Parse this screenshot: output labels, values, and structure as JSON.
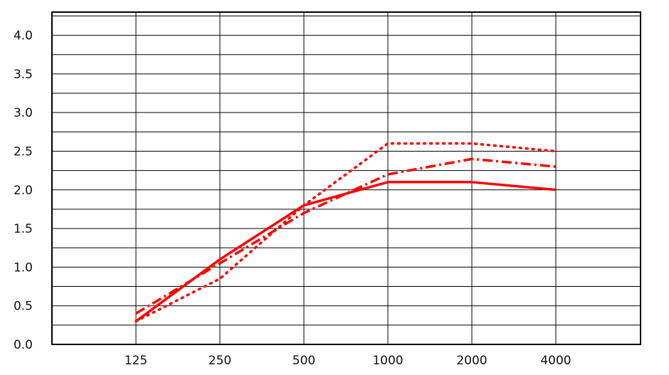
{
  "chart_data": {
    "type": "line",
    "title": "",
    "xlabel": "",
    "ylabel": "",
    "x_scale": "log2",
    "categories": [
      "125",
      "250",
      "500",
      "1000",
      "2000",
      "4000"
    ],
    "x": [
      125,
      250,
      500,
      1000,
      2000,
      4000
    ],
    "ylim": [
      0,
      4.3
    ],
    "yticks": [
      0.0,
      0.5,
      1.0,
      1.5,
      2.0,
      2.5,
      3.0,
      3.5,
      4.0
    ],
    "ytick_labels": [
      "0.0",
      "0.5",
      "1.0",
      "1.5",
      "2.0",
      "2.5",
      "3.0",
      "3.5",
      "4.0"
    ],
    "grid": true,
    "series": [
      {
        "style": "solid",
        "color": "#ff0000",
        "values": [
          0.3,
          1.1,
          1.8,
          2.1,
          2.1,
          2.0
        ]
      },
      {
        "style": "dashdot",
        "color": "#ff0000",
        "values": [
          0.4,
          1.05,
          1.7,
          2.2,
          2.4,
          2.3
        ]
      },
      {
        "style": "dotted",
        "color": "#ff0000",
        "values": [
          0.3,
          0.85,
          1.8,
          2.6,
          2.6,
          2.5
        ]
      }
    ]
  }
}
